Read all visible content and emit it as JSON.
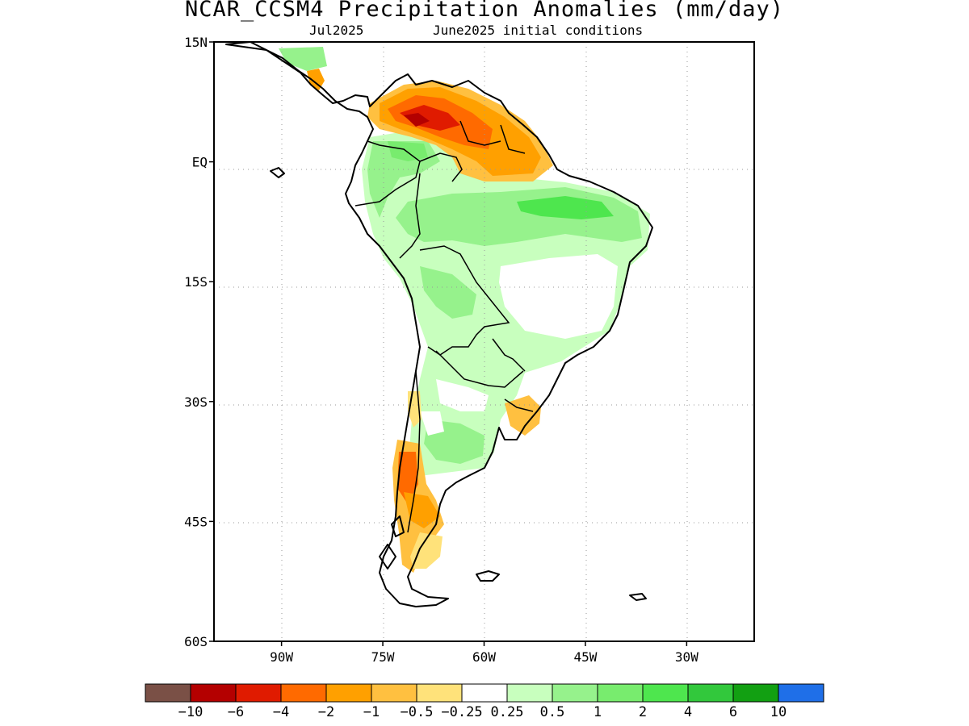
{
  "title": "NCAR_CCSM4 Precipitation Anomalies (mm/day)",
  "subtitle_left": "Jul2025",
  "subtitle_right": "June2025 initial conditions",
  "map": {
    "lon_range": [
      -100,
      -20
    ],
    "lat_range": [
      -60,
      15
    ],
    "lat_ticks": [
      {
        "value": 15,
        "label": "15N"
      },
      {
        "value": 0,
        "label": "EQ"
      },
      {
        "value": -15,
        "label": "15S"
      },
      {
        "value": -30,
        "label": "30S"
      },
      {
        "value": -45,
        "label": "45S"
      },
      {
        "value": -60,
        "label": "60S"
      }
    ],
    "lon_ticks": [
      {
        "value": -90,
        "label": "90W"
      },
      {
        "value": -75,
        "label": "75W"
      },
      {
        "value": -60,
        "label": "60W"
      },
      {
        "value": -45,
        "label": "45W"
      },
      {
        "value": -30,
        "label": "30W"
      }
    ],
    "grid": "dotted",
    "coastline_color": "#000000"
  },
  "colorbar": {
    "colors": [
      "#7a5046",
      "#b40000",
      "#e01b00",
      "#ff6a00",
      "#ffa000",
      "#ffc040",
      "#ffe27a",
      "#ffffff",
      "#c8ffbe",
      "#96f28c",
      "#78ec6e",
      "#4ee64e",
      "#32c83c",
      "#12a012",
      "#1f6fe8"
    ],
    "labels": [
      "-10",
      "-6",
      "-4",
      "-2",
      "-1",
      "-0.5",
      "-0.25",
      "0.25",
      "0.5",
      "1",
      "2",
      "4",
      "6",
      "10"
    ]
  }
}
